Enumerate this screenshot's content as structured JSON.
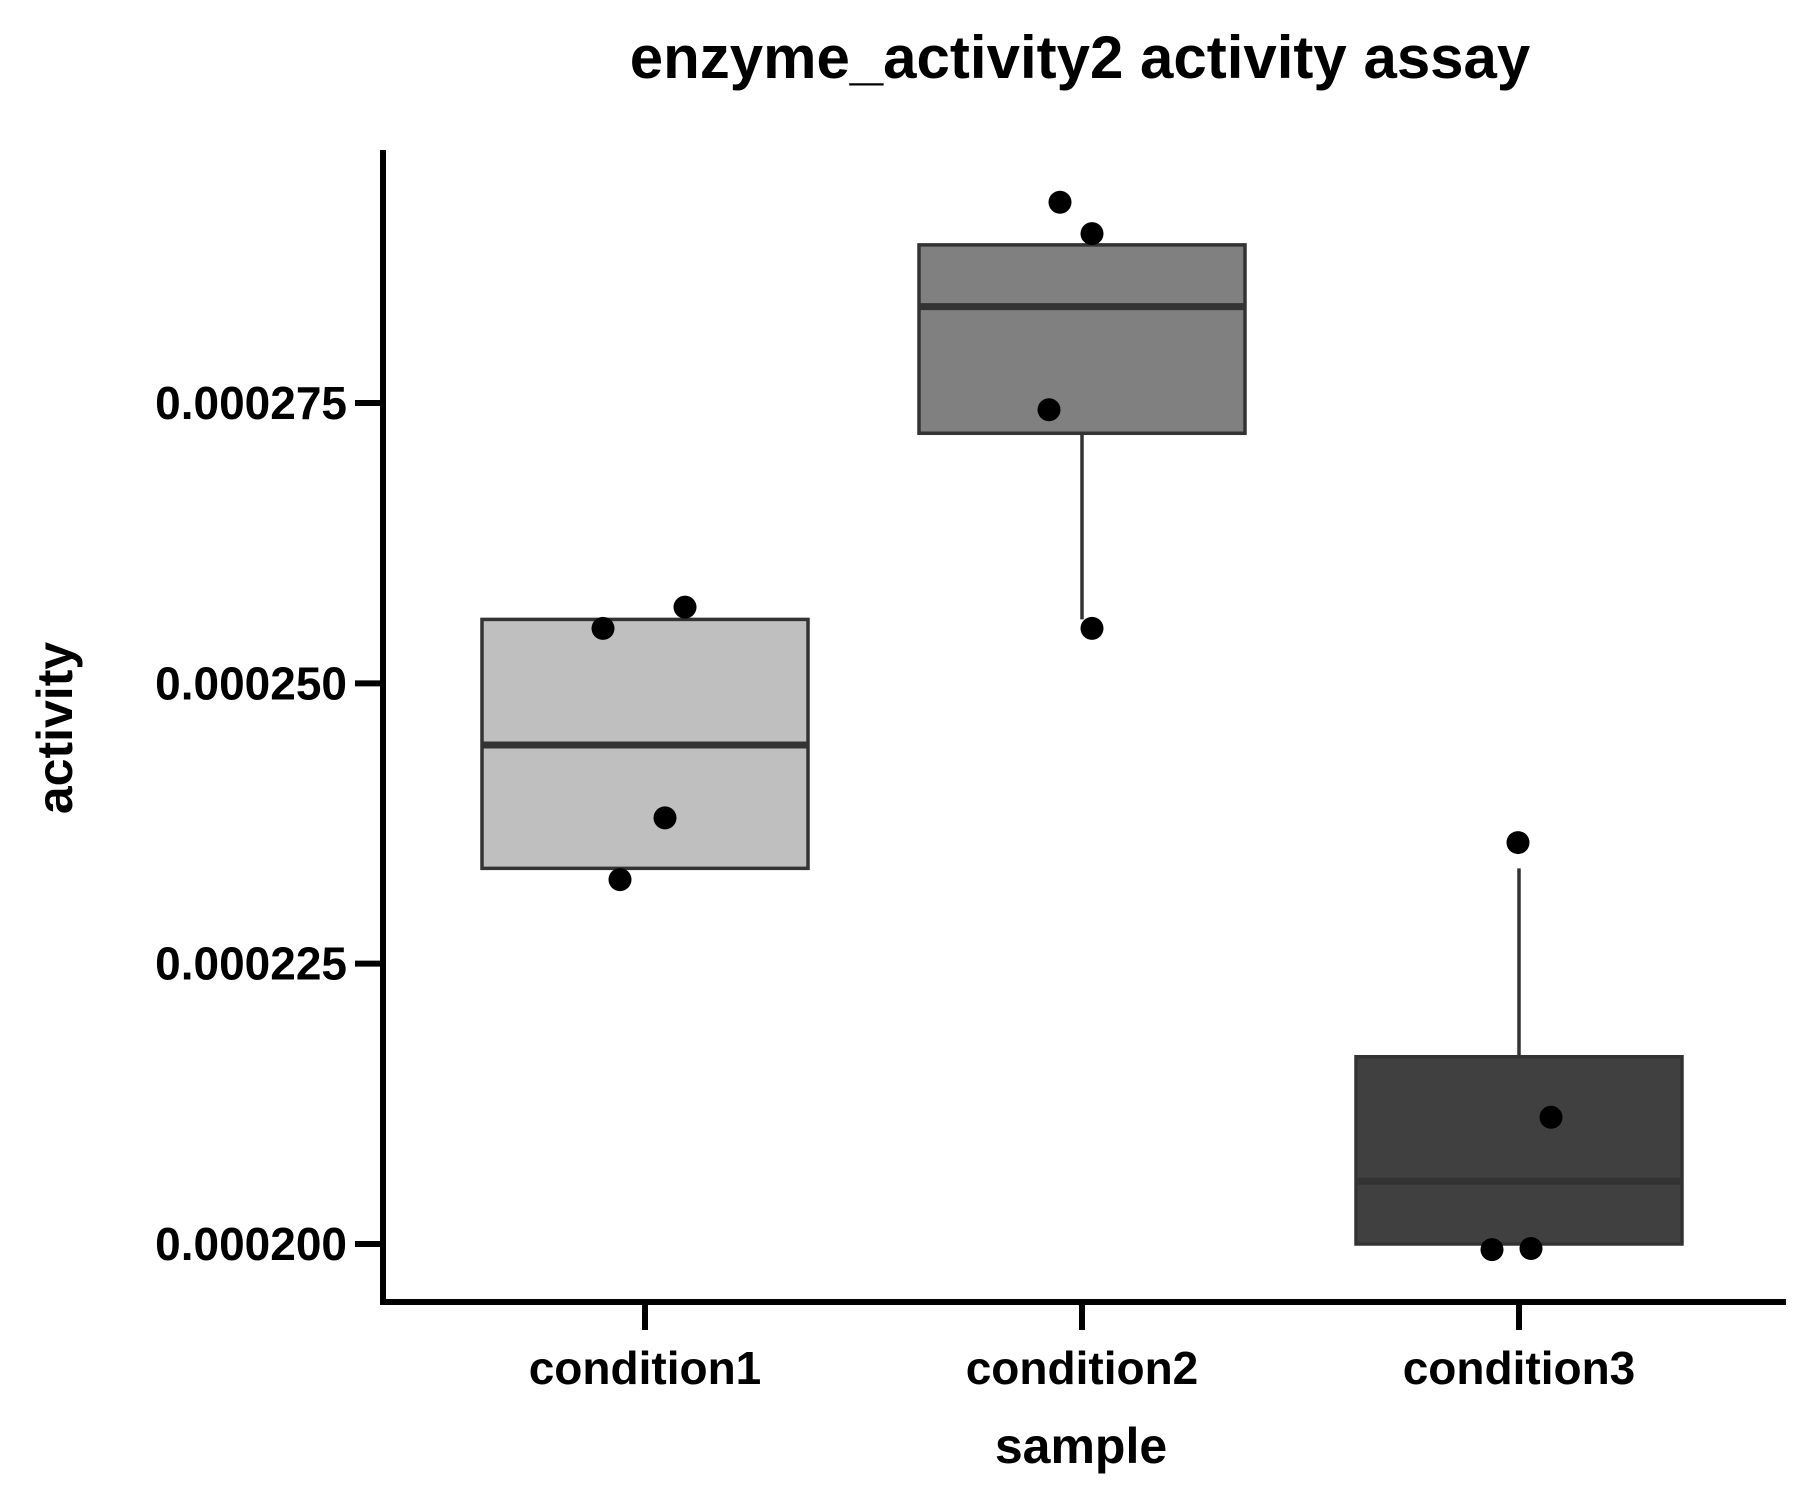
{
  "chart_data": {
    "type": "box",
    "title": "enzyme_activity2 activity assay",
    "xlabel": "sample",
    "ylabel": "activity",
    "categories": [
      "condition1",
      "condition2",
      "condition3"
    ],
    "y_ticks": [
      0.0002,
      0.000225,
      0.00025,
      0.000275
    ],
    "y_tick_labels": [
      "0.000200",
      "0.000225",
      "0.000250",
      "0.000275"
    ],
    "ylim": [
      0.000195,
      0.000298
    ],
    "grid": false,
    "legend": "none",
    "boxes": [
      {
        "category": "condition1",
        "color": "#bfbfbf",
        "whisker_low": 0.0002335,
        "q1": 0.0002335,
        "median": 0.0002445,
        "q3": 0.0002557,
        "whisker_high": 0.0002557,
        "points": [
          0.0002549,
          0.0002568,
          0.000238,
          0.0002325
        ]
      },
      {
        "category": "condition2",
        "color": "#808080",
        "whisker_low": 0.0002557,
        "q1": 0.0002723,
        "median": 0.0002836,
        "q3": 0.0002891,
        "whisker_high": 0.0002891,
        "points": [
          0.0002929,
          0.0002901,
          0.0002744,
          0.0002549
        ]
      },
      {
        "category": "condition3",
        "color": "#404040",
        "whisker_low": 0.0002,
        "q1": 0.0002,
        "median": 0.0002056,
        "q3": 0.0002167,
        "whisker_high": 0.0002335,
        "points": [
          0.0002358,
          0.0002113,
          0.0001995,
          0.0001996
        ]
      }
    ]
  }
}
